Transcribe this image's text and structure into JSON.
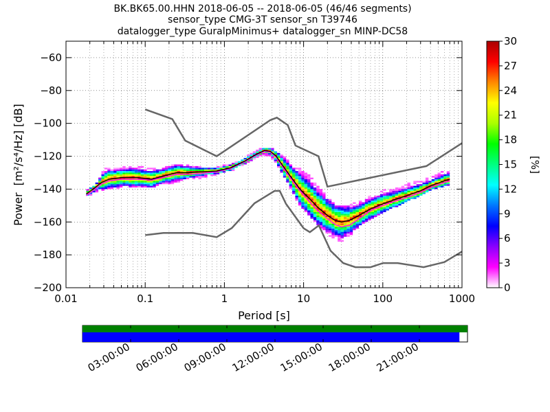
{
  "chart_data": {
    "type": "heatmap",
    "title_lines": [
      "BK.BK65.00.HHN   2018-06-05 -- 2018-06-05  (46/46 segments)",
      "sensor_type CMG-3T sensor_sn T39746",
      "datalogger_type GuralpMinimus+ datalogger_sn MINP-DC58"
    ],
    "xlabel": "Period [s]",
    "ylabel_text": "Power",
    "ylabel_units": "[m²/s⁴/Hz] [dB]",
    "x_scale": "log",
    "xlim": [
      0.01,
      1000
    ],
    "ylim": [
      -200,
      -50
    ],
    "x_ticks": [
      {
        "value": 0.01,
        "label": "0.01"
      },
      {
        "value": 0.1,
        "label": "0.1"
      },
      {
        "value": 1,
        "label": "1"
      },
      {
        "value": 10,
        "label": "10"
      },
      {
        "value": 100,
        "label": "100"
      },
      {
        "value": 1000,
        "label": "1000"
      }
    ],
    "y_ticks": [
      {
        "value": -60,
        "label": "−60"
      },
      {
        "value": -80,
        "label": "−80"
      },
      {
        "value": -100,
        "label": "−100"
      },
      {
        "value": -120,
        "label": "−120"
      },
      {
        "value": -140,
        "label": "−140"
      },
      {
        "value": -160,
        "label": "−160"
      },
      {
        "value": -180,
        "label": "−180"
      },
      {
        "value": -200,
        "label": "−200"
      }
    ],
    "grid": true,
    "colorbar": {
      "label": "[%]",
      "range": [
        0,
        30
      ],
      "ticks": [
        {
          "value": 0,
          "label": "0"
        },
        {
          "value": 3,
          "label": "3"
        },
        {
          "value": 6,
          "label": "6"
        },
        {
          "value": 9,
          "label": "9"
        },
        {
          "value": 12,
          "label": "12"
        },
        {
          "value": 15,
          "label": "15"
        },
        {
          "value": 18,
          "label": "18"
        },
        {
          "value": 21,
          "label": "21"
        },
        {
          "value": 24,
          "label": "24"
        },
        {
          "value": 27,
          "label": "27"
        },
        {
          "value": 30,
          "label": "30"
        }
      ],
      "colors": [
        "#ffffff",
        "#ff00ff",
        "#8a00ff",
        "#0000ff",
        "#0077ff",
        "#00ffff",
        "#00ff80",
        "#00ff00",
        "#aaff00",
        "#ffff00",
        "#ff8800",
        "#ff0000",
        "#aa0000"
      ]
    },
    "nhnm": [
      [
        0.1,
        -91.5
      ],
      [
        0.22,
        -97.4
      ],
      [
        0.32,
        -110.5
      ],
      [
        0.8,
        -120
      ],
      [
        3.8,
        -98
      ],
      [
        4.6,
        -96.5
      ],
      [
        6.3,
        -101
      ],
      [
        7.9,
        -113.5
      ],
      [
        15.4,
        -120
      ],
      [
        20,
        -138.5
      ],
      [
        354.8,
        -126
      ],
      [
        1000,
        -112
      ]
    ],
    "nlnm": [
      [
        0.1,
        -168
      ],
      [
        0.17,
        -166.7
      ],
      [
        0.4,
        -166.7
      ],
      [
        0.8,
        -169.2
      ],
      [
        1.24,
        -163.7
      ],
      [
        2.4,
        -148.6
      ],
      [
        4.3,
        -141.1
      ],
      [
        5,
        -141.1
      ],
      [
        6,
        -149
      ],
      [
        10,
        -163.8
      ],
      [
        12,
        -166.2
      ],
      [
        15.6,
        -162.1
      ],
      [
        21.9,
        -177.5
      ],
      [
        31.6,
        -185
      ],
      [
        45,
        -187.5
      ],
      [
        70,
        -187.5
      ],
      [
        101,
        -185
      ],
      [
        154,
        -185
      ],
      [
        328,
        -187.5
      ],
      [
        600,
        -184.4
      ],
      [
        1000,
        -178
      ]
    ],
    "series": [
      {
        "name": "",
        "color": "#000000",
        "points": [
          [
            0.018,
            -143
          ],
          [
            0.022,
            -140
          ],
          [
            0.028,
            -136
          ],
          [
            0.035,
            -134
          ],
          [
            0.05,
            -133
          ],
          [
            0.08,
            -133
          ],
          [
            0.12,
            -134
          ],
          [
            0.17,
            -132
          ],
          [
            0.25,
            -130
          ],
          [
            0.35,
            -130
          ],
          [
            0.5,
            -129.5
          ],
          [
            0.8,
            -129
          ],
          [
            1.2,
            -127
          ],
          [
            1.8,
            -123
          ],
          [
            2.5,
            -119
          ],
          [
            3.2,
            -116.5
          ],
          [
            3.8,
            -117
          ],
          [
            4.5,
            -120
          ],
          [
            5.5,
            -126
          ],
          [
            7,
            -133
          ],
          [
            9,
            -140
          ],
          [
            12,
            -146
          ],
          [
            15,
            -151
          ],
          [
            20,
            -156
          ],
          [
            25,
            -159
          ],
          [
            30,
            -160
          ],
          [
            38,
            -159
          ],
          [
            50,
            -156
          ],
          [
            70,
            -152
          ],
          [
            100,
            -149
          ],
          [
            150,
            -146
          ],
          [
            200,
            -144
          ],
          [
            300,
            -141
          ],
          [
            400,
            -138
          ],
          [
            600,
            -135
          ],
          [
            700,
            -134
          ]
        ]
      },
      {
        "name": "",
        "color": "#ff00ff",
        "points": [
          [
            0.018,
            -144
          ],
          [
            0.022,
            -141
          ],
          [
            0.028,
            -137
          ],
          [
            0.035,
            -135
          ],
          [
            0.05,
            -134
          ],
          [
            0.08,
            -134
          ],
          [
            0.12,
            -134.5
          ],
          [
            0.17,
            -133
          ],
          [
            0.25,
            -131
          ],
          [
            0.35,
            -131
          ],
          [
            0.5,
            -130.5
          ],
          [
            0.8,
            -129.5
          ],
          [
            1.2,
            -127.5
          ],
          [
            1.8,
            -123.5
          ],
          [
            2.5,
            -119.5
          ],
          [
            3.2,
            -117
          ],
          [
            3.8,
            -117.5
          ],
          [
            4.5,
            -120.5
          ],
          [
            5.5,
            -127
          ],
          [
            7,
            -134
          ],
          [
            9,
            -141
          ],
          [
            12,
            -148
          ],
          [
            15,
            -153
          ],
          [
            20,
            -158
          ],
          [
            25,
            -161.5
          ],
          [
            30,
            -163
          ],
          [
            38,
            -162
          ],
          [
            50,
            -158
          ],
          [
            70,
            -153
          ],
          [
            100,
            -150
          ],
          [
            150,
            -147
          ],
          [
            200,
            -145
          ],
          [
            300,
            -142
          ],
          [
            400,
            -139
          ],
          [
            600,
            -136
          ],
          [
            700,
            -135
          ]
        ]
      }
    ],
    "heat_band": [
      [
        0.018,
        -145,
        -141
      ],
      [
        0.025,
        -141,
        -136
      ],
      [
        0.03,
        -140,
        -128
      ],
      [
        0.05,
        -139,
        -127
      ],
      [
        0.08,
        -138,
        -126
      ],
      [
        0.12,
        -139,
        -128
      ],
      [
        0.17,
        -137,
        -127
      ],
      [
        0.25,
        -136,
        -125
      ],
      [
        0.35,
        -134,
        -126
      ],
      [
        0.5,
        -133,
        -127
      ],
      [
        0.8,
        -131,
        -127
      ],
      [
        1.2,
        -129,
        -125
      ],
      [
        1.8,
        -125,
        -121
      ],
      [
        2.5,
        -121,
        -117
      ],
      [
        3.2,
        -119,
        -115
      ],
      [
        3.8,
        -120,
        -115
      ],
      [
        4.5,
        -124,
        -117
      ],
      [
        5.5,
        -132,
        -120
      ],
      [
        7,
        -140,
        -125
      ],
      [
        9,
        -150,
        -128
      ],
      [
        12,
        -156,
        -132
      ],
      [
        15,
        -161,
        -138
      ],
      [
        20,
        -167,
        -145
      ],
      [
        25,
        -170,
        -150
      ],
      [
        30,
        -172,
        -151
      ],
      [
        38,
        -168,
        -150
      ],
      [
        50,
        -163,
        -148
      ],
      [
        70,
        -158,
        -144
      ],
      [
        100,
        -154,
        -141
      ],
      [
        150,
        -150,
        -139
      ],
      [
        200,
        -147,
        -137
      ],
      [
        300,
        -144,
        -135
      ],
      [
        400,
        -140,
        -133
      ],
      [
        600,
        -138,
        -129
      ],
      [
        700,
        -137,
        -129
      ]
    ]
  },
  "timeline": {
    "tick_labels": [
      "03:00:00",
      "06:00:00",
      "09:00:00",
      "12:00:00",
      "15:00:00",
      "18:00:00",
      "21:00:00"
    ],
    "tick_hours": [
      3,
      6,
      9,
      12,
      15,
      18,
      21
    ],
    "span_hours": 24,
    "data_available_fraction": 1.0,
    "psd_coverage_fraction": 0.979,
    "colors": {
      "available": "#008000",
      "used": "#0000ff"
    }
  }
}
